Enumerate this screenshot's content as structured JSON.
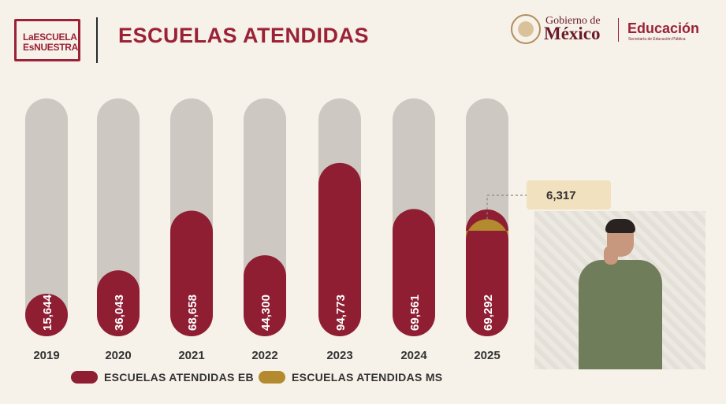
{
  "header": {
    "logo_line1": "LaESCUELA",
    "logo_line2": "EsNUESTRA",
    "title": "ESCUELAS ATENDIDAS",
    "gov_line1": "Gobierno de",
    "gov_line2": "México",
    "sep_title": "Educación",
    "sep_subtitle": "Secretaría de Educación Pública"
  },
  "colors": {
    "eb": "#8f1e33",
    "ms": "#b48a2e",
    "track": "#cdc8c2",
    "background": "#f6f1e9",
    "title": "#9b2236"
  },
  "interpreter": {
    "icon": "sign-language-interpreter"
  },
  "chart_data": {
    "type": "bar",
    "categories": [
      "2019",
      "2020",
      "2021",
      "2022",
      "2023",
      "2024",
      "2025"
    ],
    "series": [
      {
        "name": "ESCUELAS ATENDIDAS EB",
        "values": [
          15644,
          36043,
          68658,
          44300,
          94773,
          69561,
          69292
        ],
        "labels": [
          "15,644",
          "36,043",
          "68,658",
          "44,300",
          "94,773",
          "69,561",
          "69,292"
        ]
      },
      {
        "name": "ESCUELAS ATENDIDAS MS",
        "values": [
          0,
          0,
          0,
          0,
          0,
          0,
          6317
        ],
        "labels": [
          "",
          "",
          "",
          "",
          "",
          "",
          "6,317"
        ]
      }
    ],
    "stacked": true,
    "ylim": [
      0,
      130000
    ],
    "grid": false,
    "legend_position": "bottom"
  }
}
